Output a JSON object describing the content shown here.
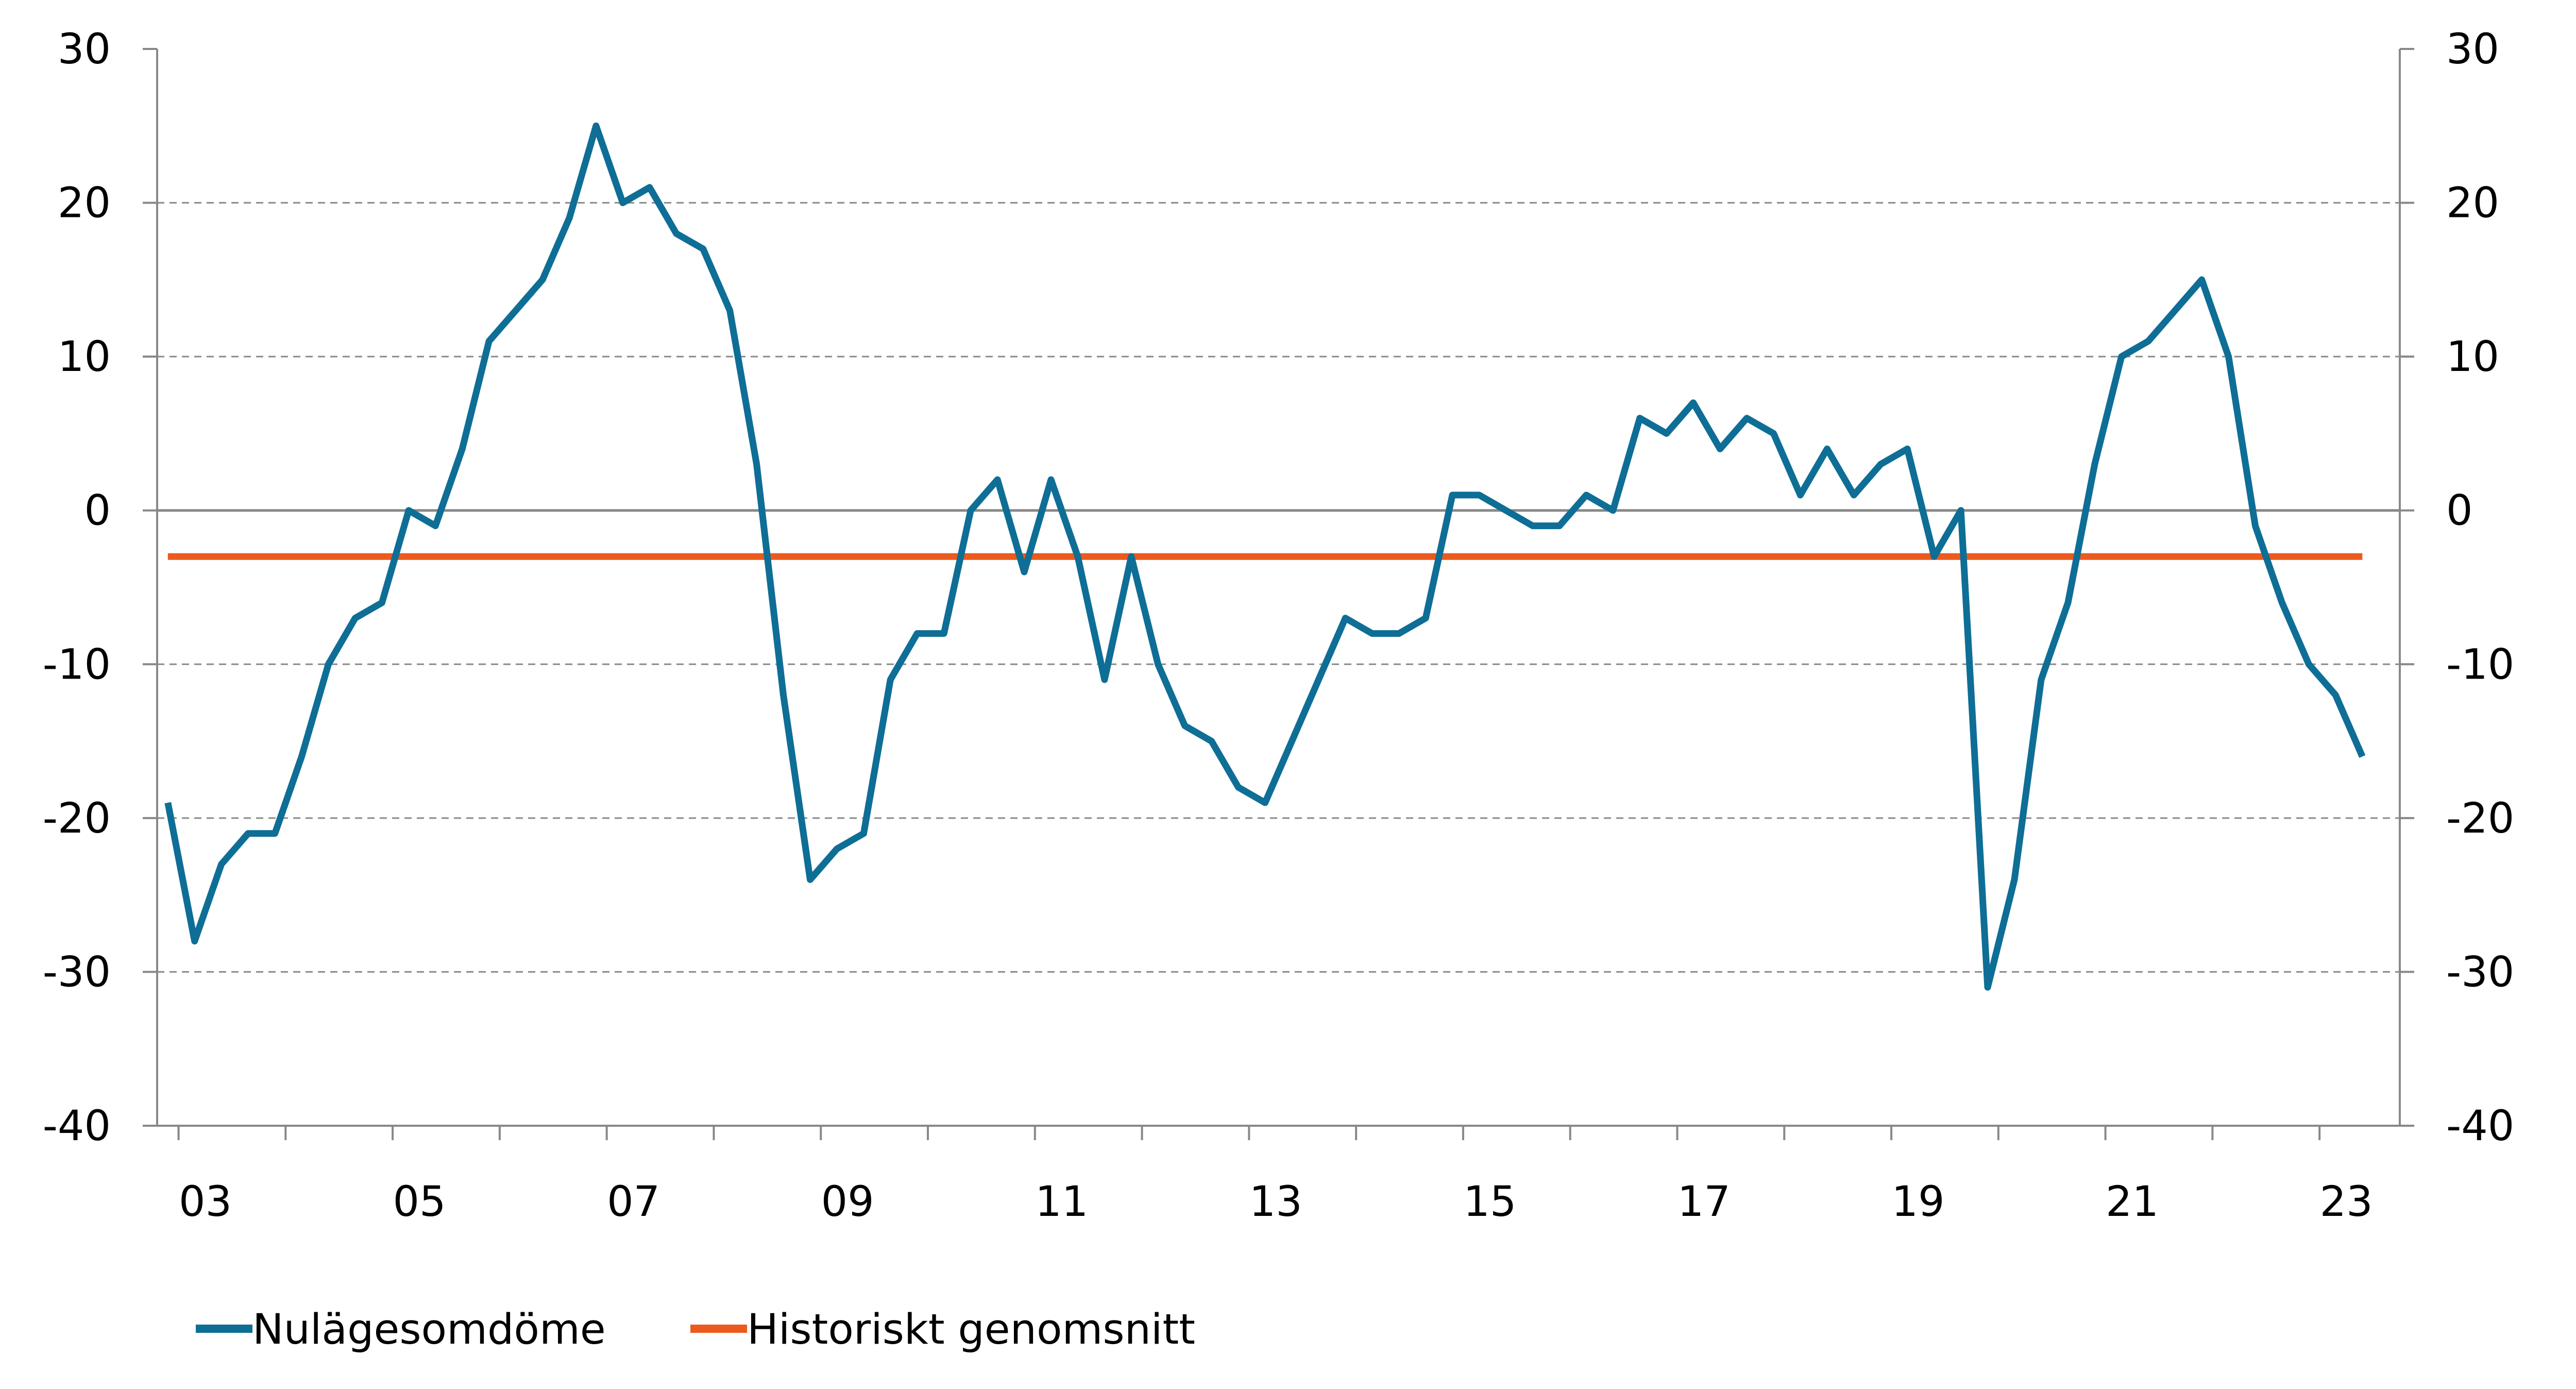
{
  "chart_data": {
    "type": "line",
    "title": "",
    "xlabel": "",
    "ylabel": "",
    "ylim": [
      -40,
      30
    ],
    "yticks": [
      "30",
      "20",
      "10",
      "0",
      "-10",
      "-20",
      "-30",
      "-40"
    ],
    "y2ticks": [
      "30",
      "20",
      "10",
      "0",
      "-10",
      "-20",
      "-30",
      "-40"
    ],
    "xlim": [
      2002.8,
      2023.75
    ],
    "xtick_labels": [
      {
        "x": 2003.25,
        "label": "03"
      },
      {
        "x": 2005.25,
        "label": "05"
      },
      {
        "x": 2007.25,
        "label": "07"
      },
      {
        "x": 2009.25,
        "label": "09"
      },
      {
        "x": 2011.25,
        "label": "11"
      },
      {
        "x": 2013.25,
        "label": "13"
      },
      {
        "x": 2015.25,
        "label": "15"
      },
      {
        "x": 2017.25,
        "label": "17"
      },
      {
        "x": 2019.25,
        "label": "19"
      },
      {
        "x": 2021.25,
        "label": "21"
      },
      {
        "x": 2023.25,
        "label": "23"
      }
    ],
    "grid": "horizontal-dashed",
    "legend_position": "bottom-left",
    "colors": {
      "series1": "#0e6e96",
      "series2": "#ec5a1e",
      "axis": "#888888",
      "grid": "#8a8a8a"
    },
    "series": [
      {
        "name": "Nulägesomdöme",
        "x": [
          2002.9,
          2003.15,
          2003.4,
          2003.65,
          2003.9,
          2004.15,
          2004.4,
          2004.65,
          2004.9,
          2005.15,
          2005.4,
          2005.65,
          2005.9,
          2006.15,
          2006.4,
          2006.65,
          2006.9,
          2007.15,
          2007.4,
          2007.65,
          2007.9,
          2008.15,
          2008.4,
          2008.65,
          2008.9,
          2009.15,
          2009.4,
          2009.65,
          2009.9,
          2010.15,
          2010.4,
          2010.65,
          2010.9,
          2011.15,
          2011.4,
          2011.65,
          2011.9,
          2012.15,
          2012.4,
          2012.65,
          2012.9,
          2013.15,
          2013.4,
          2013.65,
          2013.9,
          2014.15,
          2014.4,
          2014.65,
          2014.9,
          2015.15,
          2015.4,
          2015.65,
          2015.9,
          2016.15,
          2016.4,
          2016.65,
          2016.9,
          2017.15,
          2017.4,
          2017.65,
          2017.9,
          2018.15,
          2018.4,
          2018.65,
          2018.9,
          2019.15,
          2019.4,
          2019.65,
          2019.9,
          2020.15,
          2020.4,
          2020.65,
          2020.9,
          2021.15,
          2021.4,
          2021.65,
          2021.9,
          2022.15,
          2022.4,
          2022.65,
          2022.9,
          2023.15,
          2023.4
        ],
        "values": [
          -19,
          -28,
          -23,
          -21,
          -21,
          -16,
          -10,
          -7,
          -6,
          0,
          -1,
          4,
          11,
          13,
          15,
          19,
          25,
          20,
          21,
          18,
          17,
          13,
          3,
          -12,
          -24,
          -22,
          -21,
          -11,
          -8,
          -8,
          0,
          2,
          -4,
          2,
          -3,
          -11,
          -3,
          -10,
          -14,
          -15,
          -18,
          -19,
          -15,
          -11,
          -7,
          -8,
          -8,
          -7,
          1,
          1,
          0,
          -1,
          -1,
          1,
          0,
          6,
          5,
          7,
          4,
          6,
          5,
          1,
          4,
          1,
          3,
          4,
          -3,
          0,
          -31,
          -24,
          -11,
          -6,
          3,
          10,
          11,
          13,
          15,
          10,
          -1,
          -6,
          -10,
          -12,
          -16
        ]
      },
      {
        "name": "Historiskt genomsnitt",
        "x": [
          2002.9,
          2023.4
        ],
        "values": [
          -3,
          -3
        ]
      }
    ]
  }
}
